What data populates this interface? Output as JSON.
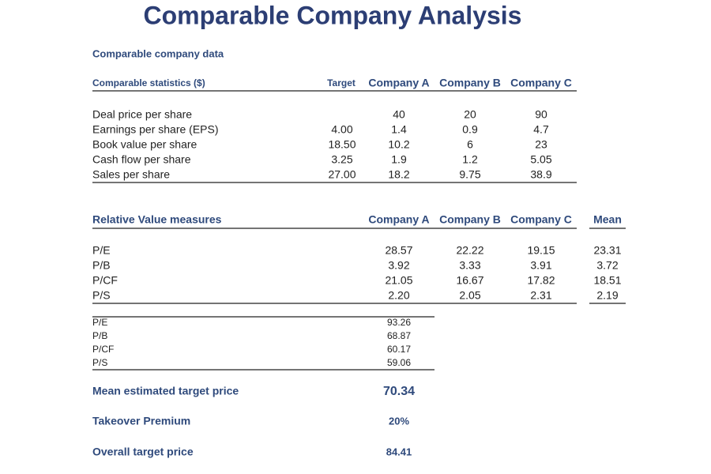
{
  "title": "Comparable Company Analysis",
  "company_data": {
    "heading": "Comparable company data",
    "header": {
      "label": "Comparable statistics ($)",
      "target": "Target",
      "companies": [
        "Company A",
        "Company B",
        "Company C"
      ]
    },
    "rows": [
      {
        "label": "Deal price per share",
        "values": [
          "40",
          "20",
          "90"
        ]
      },
      {
        "label": "Earnings per share (EPS)",
        "target": "4.00",
        "values": [
          "1.4",
          "0.9",
          "4.7"
        ]
      },
      {
        "label": "Book value per share",
        "target": "18.50",
        "values": [
          "10.2",
          "6",
          "23"
        ]
      },
      {
        "label": "Cash flow per share",
        "target": "3.25",
        "values": [
          "1.9",
          "1.2",
          "5.05"
        ]
      },
      {
        "label": "Sales per share",
        "target": "27.00",
        "values": [
          "18.2",
          "9.75",
          "38.9"
        ]
      }
    ]
  },
  "relative_value": {
    "heading": "Relative Value measures",
    "columns": [
      "Company A",
      "Company B",
      "Company C",
      "Mean"
    ],
    "rows": [
      {
        "label": "P/E",
        "values": [
          "28.57",
          "22.22",
          "19.15",
          "23.31"
        ]
      },
      {
        "label": "P/B",
        "values": [
          "3.92",
          "3.33",
          "3.91",
          "3.72"
        ]
      },
      {
        "label": "P/CF",
        "values": [
          "21.05",
          "16.67",
          "17.82",
          "18.51"
        ]
      },
      {
        "label": "P/S",
        "values": [
          "2.20",
          "2.05",
          "2.31",
          "2.19"
        ]
      }
    ]
  },
  "implied_prices": {
    "rows": [
      {
        "label": "P/E",
        "value": "93.26"
      },
      {
        "label": "P/B",
        "value": "68.87"
      },
      {
        "label": "P/CF",
        "value": "60.17"
      },
      {
        "label": "P/S",
        "value": "59.06"
      }
    ]
  },
  "summary": [
    {
      "label": "Mean estimated target price",
      "value": "70.34"
    },
    {
      "label": "Takeover Premium",
      "value": "20%"
    },
    {
      "label": "Overall target price",
      "value": "84.41"
    }
  ]
}
